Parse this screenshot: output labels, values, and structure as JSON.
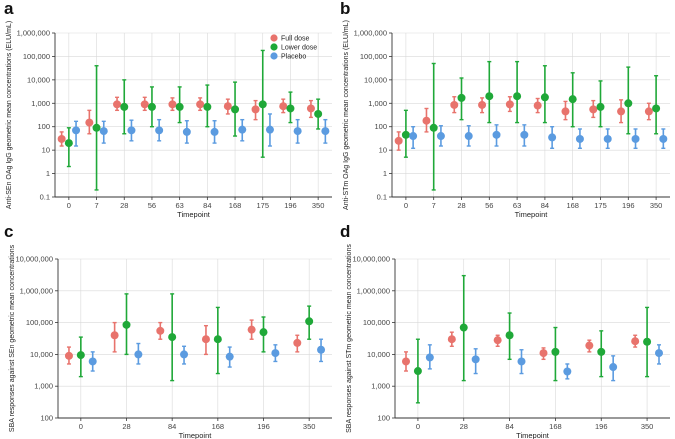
{
  "colors": {
    "full": "#E8736C",
    "lower": "#1FA838",
    "placebo": "#5B9BE0",
    "axis": "#333333",
    "grid": "#d9d9d9"
  },
  "legend": {
    "full": "Full dose",
    "lower": "Lower dose",
    "placebo": "Placebo"
  },
  "chart_data": [
    {
      "panel": "a",
      "type": "scatter-errorbar",
      "scale": "log",
      "ylabel": "Anti-SEn OAg IgG geometric mean concentrations (ELU/mL)",
      "xlabel": "Timepoint",
      "categories": [
        "0",
        "7",
        "28",
        "56",
        "63",
        "84",
        "168",
        "175",
        "196",
        "350"
      ],
      "ylim": [
        0.1,
        1000000
      ],
      "yticks": [
        0.1,
        1,
        10,
        100,
        1000,
        10000,
        100000,
        1000000
      ],
      "ytick_labels": [
        "0.1",
        "1",
        "10",
        "100",
        "1,000",
        "10,000",
        "100,000",
        "1,000,000"
      ],
      "legend_position": "top-right",
      "series": [
        {
          "name": "Full dose",
          "key": "full",
          "points": [
            [
              30,
              15,
              60
            ],
            [
              150,
              50,
              500
            ],
            [
              900,
              500,
              1800
            ],
            [
              900,
              500,
              1800
            ],
            [
              900,
              500,
              1700
            ],
            [
              900,
              500,
              1700
            ],
            [
              750,
              350,
              1500
            ],
            [
              550,
              200,
              1300
            ],
            [
              750,
              400,
              1500
            ],
            [
              600,
              250,
              1300
            ]
          ]
        },
        {
          "name": "Lower dose",
          "key": "lower",
          "points": [
            [
              20,
              2,
              90
            ],
            [
              90,
              0.2,
              40000
            ],
            [
              700,
              50,
              10000
            ],
            [
              700,
              100,
              5000
            ],
            [
              700,
              150,
              5000
            ],
            [
              700,
              100,
              6000
            ],
            [
              550,
              40,
              8000
            ],
            [
              900,
              5,
              180000
            ],
            [
              600,
              150,
              3000
            ],
            [
              350,
              80,
              1500
            ]
          ]
        },
        {
          "name": "Placebo",
          "key": "placebo",
          "points": [
            [
              70,
              15,
              170
            ],
            [
              65,
              20,
              170
            ],
            [
              70,
              25,
              190
            ],
            [
              70,
              25,
              200
            ],
            [
              60,
              20,
              180
            ],
            [
              60,
              20,
              180
            ],
            [
              75,
              25,
              200
            ],
            [
              75,
              15,
              350
            ],
            [
              65,
              20,
              200
            ],
            [
              65,
              20,
              200
            ]
          ]
        }
      ]
    },
    {
      "panel": "b",
      "type": "scatter-errorbar",
      "scale": "log",
      "ylabel": "Anti-STm OAg IgG geometric mean concentrations (ELU/mL)",
      "xlabel": "Timepoint",
      "categories": [
        "0",
        "7",
        "28",
        "56",
        "63",
        "84",
        "168",
        "175",
        "196",
        "350"
      ],
      "ylim": [
        0.1,
        1000000
      ],
      "yticks": [
        0.1,
        1,
        10,
        100,
        1000,
        10000,
        100000,
        1000000
      ],
      "ytick_labels": [
        "0.1",
        "1",
        "10",
        "100",
        "1,000",
        "10,000",
        "100,000",
        "1,000,000"
      ],
      "series": [
        {
          "name": "Full dose",
          "key": "full",
          "points": [
            [
              25,
              10,
              60
            ],
            [
              180,
              60,
              600
            ],
            [
              850,
              400,
              1900
            ],
            [
              850,
              400,
              1700
            ],
            [
              900,
              450,
              1900
            ],
            [
              800,
              400,
              1600
            ],
            [
              450,
              200,
              1200
            ],
            [
              550,
              250,
              1300
            ],
            [
              450,
              150,
              1400
            ],
            [
              450,
              200,
              1000
            ]
          ]
        },
        {
          "name": "Lower dose",
          "key": "lower",
          "points": [
            [
              45,
              5,
              500
            ],
            [
              90,
              0.2,
              50000
            ],
            [
              1700,
              200,
              12000
            ],
            [
              2000,
              150,
              60000
            ],
            [
              2000,
              150,
              60000
            ],
            [
              1800,
              150,
              40000
            ],
            [
              1500,
              100,
              20000
            ],
            [
              700,
              100,
              9000
            ],
            [
              1000,
              50,
              35000
            ],
            [
              600,
              50,
              15000
            ]
          ]
        },
        {
          "name": "Placebo",
          "key": "placebo",
          "points": [
            [
              40,
              12,
              100
            ],
            [
              40,
              15,
              110
            ],
            [
              40,
              15,
              110
            ],
            [
              45,
              15,
              120
            ],
            [
              45,
              15,
              120
            ],
            [
              35,
              12,
              100
            ],
            [
              30,
              12,
              80
            ],
            [
              30,
              12,
              80
            ],
            [
              30,
              12,
              80
            ],
            [
              30,
              12,
              80
            ]
          ]
        }
      ]
    },
    {
      "panel": "c",
      "type": "scatter-errorbar",
      "scale": "log",
      "ylabel": "SBA responses against SEn geometric mean concentrations",
      "xlabel": "Timepoint",
      "categories": [
        "0",
        "28",
        "84",
        "168",
        "196",
        "350"
      ],
      "ylim": [
        100,
        10000000
      ],
      "yticks": [
        100,
        1000,
        10000,
        100000,
        1000000,
        10000000
      ],
      "ytick_labels": [
        "100",
        "1,000",
        "10,000",
        "100,000",
        "1,000,000",
        "10,000,000"
      ],
      "series": [
        {
          "name": "Full dose",
          "key": "full",
          "points": [
            [
              9000,
              5000,
              17000
            ],
            [
              40000,
              12000,
              100000
            ],
            [
              55000,
              30000,
              100000
            ],
            [
              30000,
              10000,
              80000
            ],
            [
              60000,
              30000,
              120000
            ],
            [
              23000,
              12000,
              40000
            ]
          ]
        },
        {
          "name": "Lower dose",
          "key": "lower",
          "points": [
            [
              9500,
              2000,
              35000
            ],
            [
              85000,
              10000,
              800000
            ],
            [
              35000,
              1500,
              800000
            ],
            [
              30000,
              2500,
              300000
            ],
            [
              50000,
              12000,
              150000
            ],
            [
              110000,
              30000,
              330000
            ]
          ]
        },
        {
          "name": "Placebo",
          "key": "placebo",
          "points": [
            [
              6000,
              3000,
              12000
            ],
            [
              10000,
              5000,
              22000
            ],
            [
              10000,
              5000,
              18000
            ],
            [
              8500,
              4000,
              17000
            ],
            [
              11000,
              6000,
              20000
            ],
            [
              14000,
              6000,
              30000
            ]
          ]
        }
      ]
    },
    {
      "panel": "d",
      "type": "scatter-errorbar",
      "scale": "log",
      "ylabel": "SBA responses against STm geometric mean concentrations",
      "xlabel": "Timepoint",
      "categories": [
        "0",
        "28",
        "84",
        "168",
        "196",
        "350"
      ],
      "ylim": [
        100,
        10000000
      ],
      "yticks": [
        100,
        1000,
        10000,
        100000,
        1000000,
        10000000
      ],
      "ytick_labels": [
        "100",
        "1,000",
        "10,000",
        "100,000",
        "1,000,000",
        "10,000,000"
      ],
      "series": [
        {
          "name": "Full dose",
          "key": "full",
          "points": [
            [
              6000,
              3000,
              12000
            ],
            [
              30000,
              18000,
              50000
            ],
            [
              28000,
              18000,
              40000
            ],
            [
              11000,
              7000,
              16000
            ],
            [
              19000,
              12000,
              28000
            ],
            [
              26000,
              17000,
              40000
            ]
          ]
        },
        {
          "name": "Lower dose",
          "key": "lower",
          "points": [
            [
              3000,
              300,
              30000
            ],
            [
              70000,
              1500,
              3000000
            ],
            [
              40000,
              7000,
              200000
            ],
            [
              12000,
              1500,
              70000
            ],
            [
              12000,
              2000,
              55000
            ],
            [
              25000,
              2000,
              300000
            ]
          ]
        },
        {
          "name": "Placebo",
          "key": "placebo",
          "points": [
            [
              8000,
              3500,
              20000
            ],
            [
              7000,
              2500,
              15000
            ],
            [
              6000,
              2500,
              14000
            ],
            [
              2900,
              1700,
              5000
            ],
            [
              4000,
              1500,
              9000
            ],
            [
              11000,
              5000,
              20000
            ]
          ]
        }
      ]
    }
  ]
}
